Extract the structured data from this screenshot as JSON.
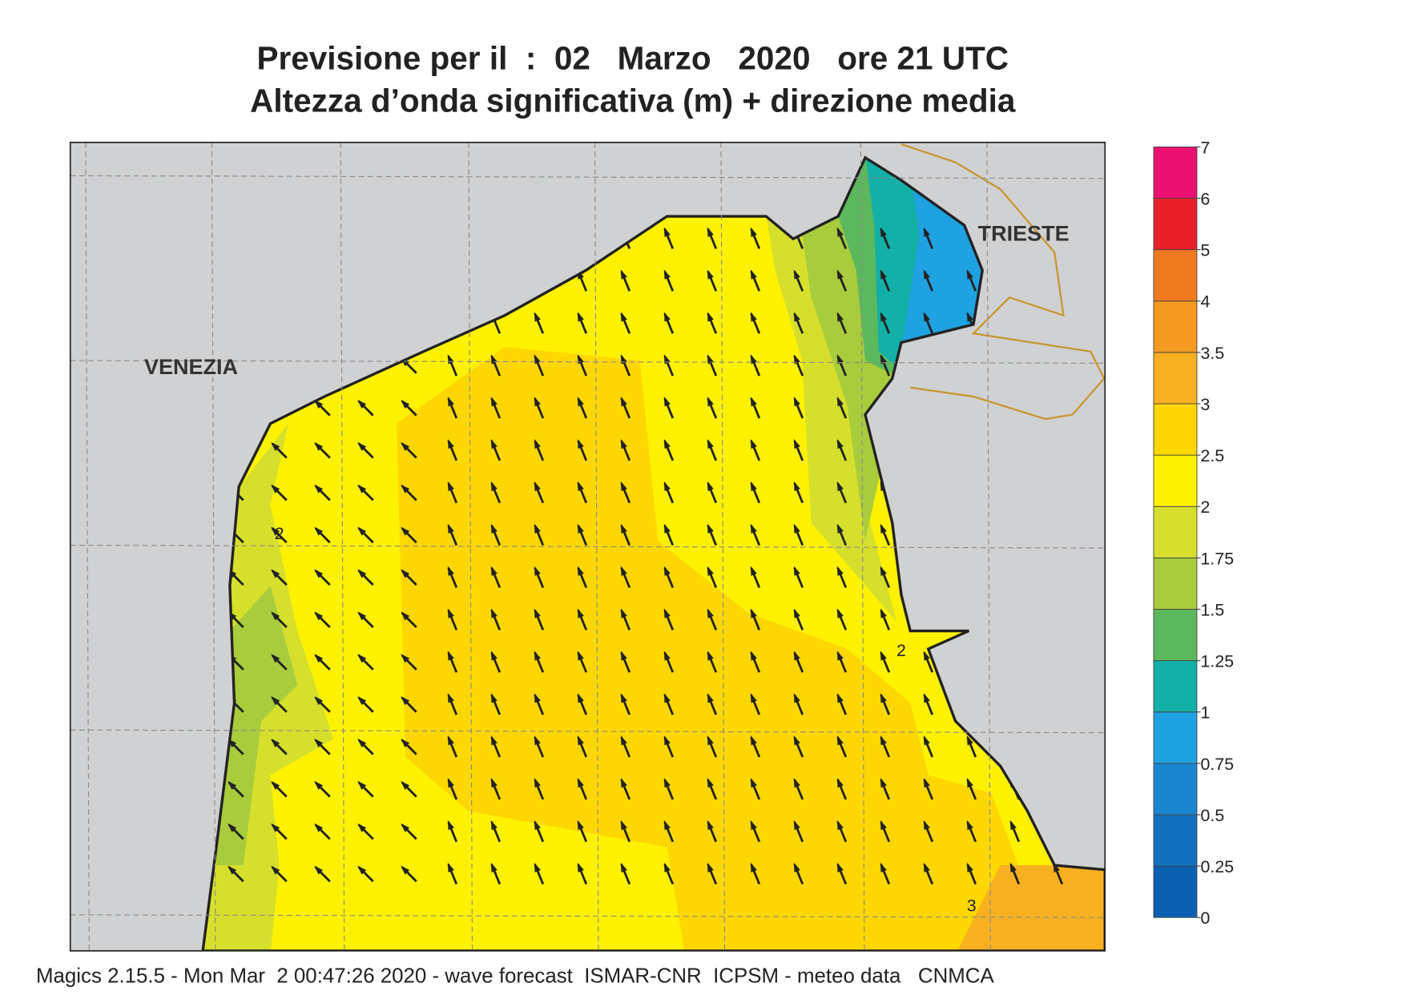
{
  "header": {
    "title": "Previsione per il  :  02   Marzo   2020   ore 21 UTC",
    "subtitle": "Altezza d’onda significativa (m) + direzione media"
  },
  "map": {
    "labels": [
      "VENEZIA",
      "TRIESTE"
    ],
    "contour_labels": [
      2,
      2,
      3
    ]
  },
  "legend": {
    "ticks": [
      0,
      0.25,
      0.5,
      0.75,
      1,
      1.25,
      1.5,
      1.75,
      2,
      2.5,
      3,
      3.5,
      4,
      5,
      6,
      7
    ],
    "colors": [
      "#0a5fb0",
      "#1170c0",
      "#1a85d0",
      "#1ea2e2",
      "#12b0a6",
      "#5cb85c",
      "#a8cc3c",
      "#d6e02c",
      "#fff200",
      "#ffd700",
      "#f8b020",
      "#f59a20",
      "#f07a20",
      "#e8202a",
      "#ec1070"
    ]
  },
  "footer": "Magics 2.15.5 - Mon Mar  2 00:47:26 2020 - wave forecast  ISMAR-CNR  ICPSM - meteo data   CNMCA"
}
